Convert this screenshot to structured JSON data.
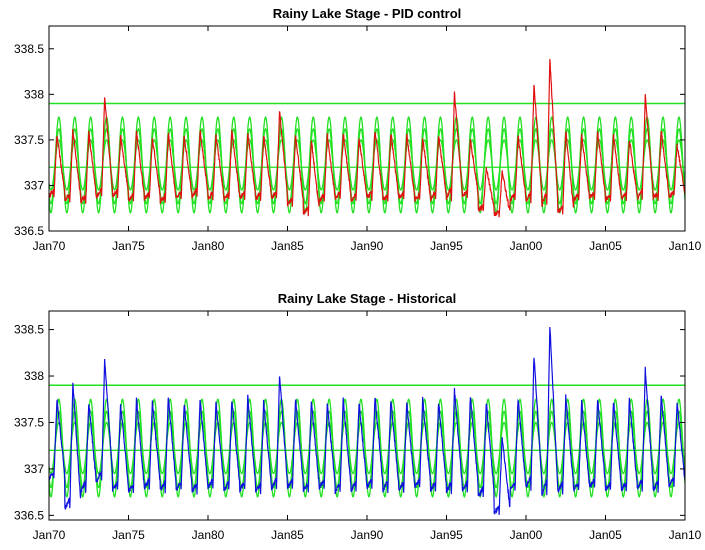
{
  "chart_data": [
    {
      "type": "line",
      "title": "Rainy Lake Stage - PID control",
      "xlabel": "",
      "ylabel": "",
      "x_ticks": [
        "Jan70",
        "Jan75",
        "Jan80",
        "Jan85",
        "Jan90",
        "Jan95",
        "Jan00",
        "Jan05",
        "Jan10"
      ],
      "x_range": [
        "1970-01-01",
        "2010-01-01"
      ],
      "y_ticks": [
        "336.5",
        "337",
        "337.5",
        "338",
        "338.5"
      ],
      "ylim": [
        336.5,
        338.75
      ],
      "grid": false,
      "reference_lines": [
        {
          "y": 337.9,
          "color": "#22e022"
        }
      ],
      "envelope": {
        "color": "#22e022",
        "period_years": 1,
        "bands": [
          {
            "min": 336.7,
            "max": 337.75
          },
          {
            "min": 336.8,
            "max": 337.62
          },
          {
            "min": 336.95,
            "max": 337.5
          },
          {
            "min": 337.2,
            "max": 337.2
          }
        ]
      },
      "series": [
        {
          "color": "#e01010",
          "period_years": 1,
          "annual_peaks": [
            337.55,
            337.6,
            337.58,
            337.97,
            337.55,
            337.6,
            337.52,
            337.58,
            337.55,
            337.6,
            337.55,
            337.6,
            337.58,
            337.55,
            337.82,
            337.55,
            337.5,
            337.55,
            337.58,
            337.52,
            337.6,
            337.58,
            337.55,
            337.52,
            337.55,
            338.02,
            337.5,
            337.2,
            337.15,
            337.55,
            338.12,
            338.38,
            337.6,
            337.55,
            337.58,
            337.55,
            337.5,
            337.98,
            337.6,
            337.45
          ],
          "annual_troughs": [
            336.85,
            336.8,
            336.78,
            336.82,
            336.85,
            336.8,
            336.82,
            336.78,
            336.82,
            336.85,
            336.82,
            336.8,
            336.82,
            336.82,
            336.8,
            336.75,
            336.65,
            336.8,
            336.82,
            336.8,
            336.82,
            336.8,
            336.82,
            336.8,
            336.82,
            336.8,
            336.85,
            336.7,
            336.65,
            336.8,
            336.75,
            336.7,
            336.65,
            336.8,
            336.82,
            336.8,
            336.82,
            336.8,
            336.82,
            336.85
          ]
        }
      ]
    },
    {
      "type": "line",
      "title": "Rainy Lake Stage - Historical",
      "xlabel": "",
      "ylabel": "",
      "x_ticks": [
        "Jan70",
        "Jan75",
        "Jan80",
        "Jan85",
        "Jan90",
        "Jan95",
        "Jan00",
        "Jan05",
        "Jan10"
      ],
      "x_range": [
        "1970-01-01",
        "2010-01-01"
      ],
      "y_ticks": [
        "336.5",
        "337",
        "337.5",
        "338",
        "338.5"
      ],
      "ylim": [
        336.45,
        338.7
      ],
      "grid": false,
      "reference_lines": [
        {
          "y": 337.9,
          "color": "#22e022"
        }
      ],
      "envelope": {
        "color": "#22e022",
        "period_years": 1,
        "bands": [
          {
            "min": 336.7,
            "max": 337.75
          },
          {
            "min": 336.8,
            "max": 337.62
          },
          {
            "min": 336.95,
            "max": 337.5
          },
          {
            "min": 337.2,
            "max": 337.2
          }
        ]
      },
      "series": [
        {
          "color": "#1010e0",
          "period_years": 1,
          "annual_peaks": [
            337.75,
            337.92,
            337.72,
            338.18,
            337.7,
            337.75,
            337.72,
            337.78,
            337.7,
            337.75,
            337.72,
            337.75,
            337.78,
            337.72,
            338.02,
            337.75,
            337.72,
            337.7,
            337.75,
            337.72,
            337.78,
            337.75,
            337.72,
            337.75,
            337.72,
            337.85,
            337.78,
            337.72,
            337.35,
            337.75,
            338.22,
            338.55,
            337.78,
            337.72,
            337.75,
            337.72,
            337.75,
            338.08,
            337.8,
            337.72
          ],
          "annual_troughs": [
            336.85,
            336.5,
            336.72,
            336.8,
            336.72,
            336.7,
            336.75,
            336.72,
            336.72,
            336.7,
            336.75,
            336.72,
            336.72,
            336.7,
            336.72,
            336.75,
            336.72,
            336.75,
            336.7,
            336.72,
            336.75,
            336.72,
            336.72,
            336.75,
            336.72,
            336.7,
            336.72,
            336.65,
            336.48,
            336.72,
            336.72,
            336.62,
            336.7,
            336.72,
            336.75,
            336.72,
            336.72,
            336.7,
            336.72,
            336.78
          ]
        }
      ]
    }
  ]
}
